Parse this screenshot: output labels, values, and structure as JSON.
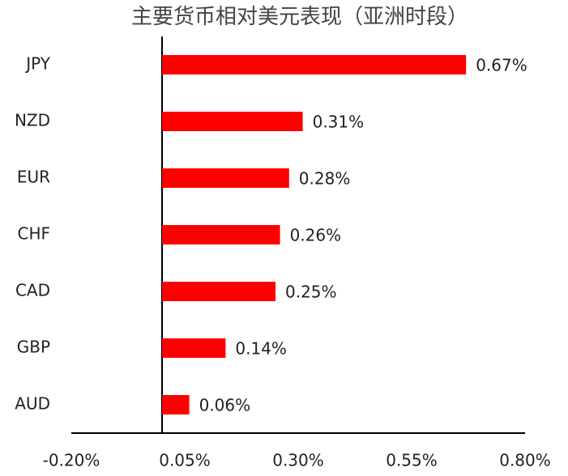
{
  "chart_data": {
    "type": "barh",
    "title": "主要货币相对美元表现（亚洲时段）",
    "categories": [
      "JPY",
      "NZD",
      "EUR",
      "CHF",
      "CAD",
      "GBP",
      "AUD"
    ],
    "values": [
      0.67,
      0.31,
      0.28,
      0.26,
      0.25,
      0.14,
      0.06
    ],
    "value_labels": [
      "0.67%",
      "0.31%",
      "0.28%",
      "0.26%",
      "0.25%",
      "0.14%",
      "0.06%"
    ],
    "color": "#ff0000",
    "xlim": [
      -0.2,
      0.8
    ],
    "xticks": [
      {
        "value": -0.2,
        "label": "-0.20%"
      },
      {
        "value": 0.05,
        "label": "0.05%"
      },
      {
        "value": 0.3,
        "label": "0.30%"
      },
      {
        "value": 0.55,
        "label": "0.55%"
      },
      {
        "value": 0.8,
        "label": "0.80%"
      }
    ],
    "grid": false
  }
}
